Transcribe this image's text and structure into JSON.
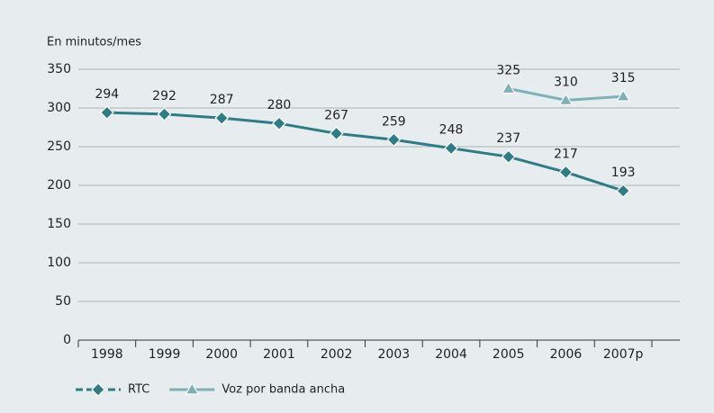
{
  "chart_data": {
    "type": "line",
    "y_axis_label": "En minutos/mes",
    "categories": [
      "1998",
      "1999",
      "2000",
      "2001",
      "2002",
      "2003",
      "2004",
      "2005",
      "2006",
      "2007p"
    ],
    "series": [
      {
        "name": "RTC",
        "color": "#2f7c86",
        "marker": "diamond",
        "values": [
          294,
          292,
          287,
          280,
          267,
          259,
          248,
          237,
          217,
          193
        ]
      },
      {
        "name": "Voz por banda ancha",
        "color": "#7eb0b8",
        "marker": "triangle",
        "values": [
          null,
          null,
          null,
          null,
          null,
          null,
          null,
          325,
          310,
          315
        ]
      }
    ],
    "ylim": [
      0,
      350
    ],
    "yticks": [
      0,
      50,
      100,
      150,
      200,
      250,
      300,
      350
    ],
    "grid": true,
    "legend": "bottom-left"
  }
}
